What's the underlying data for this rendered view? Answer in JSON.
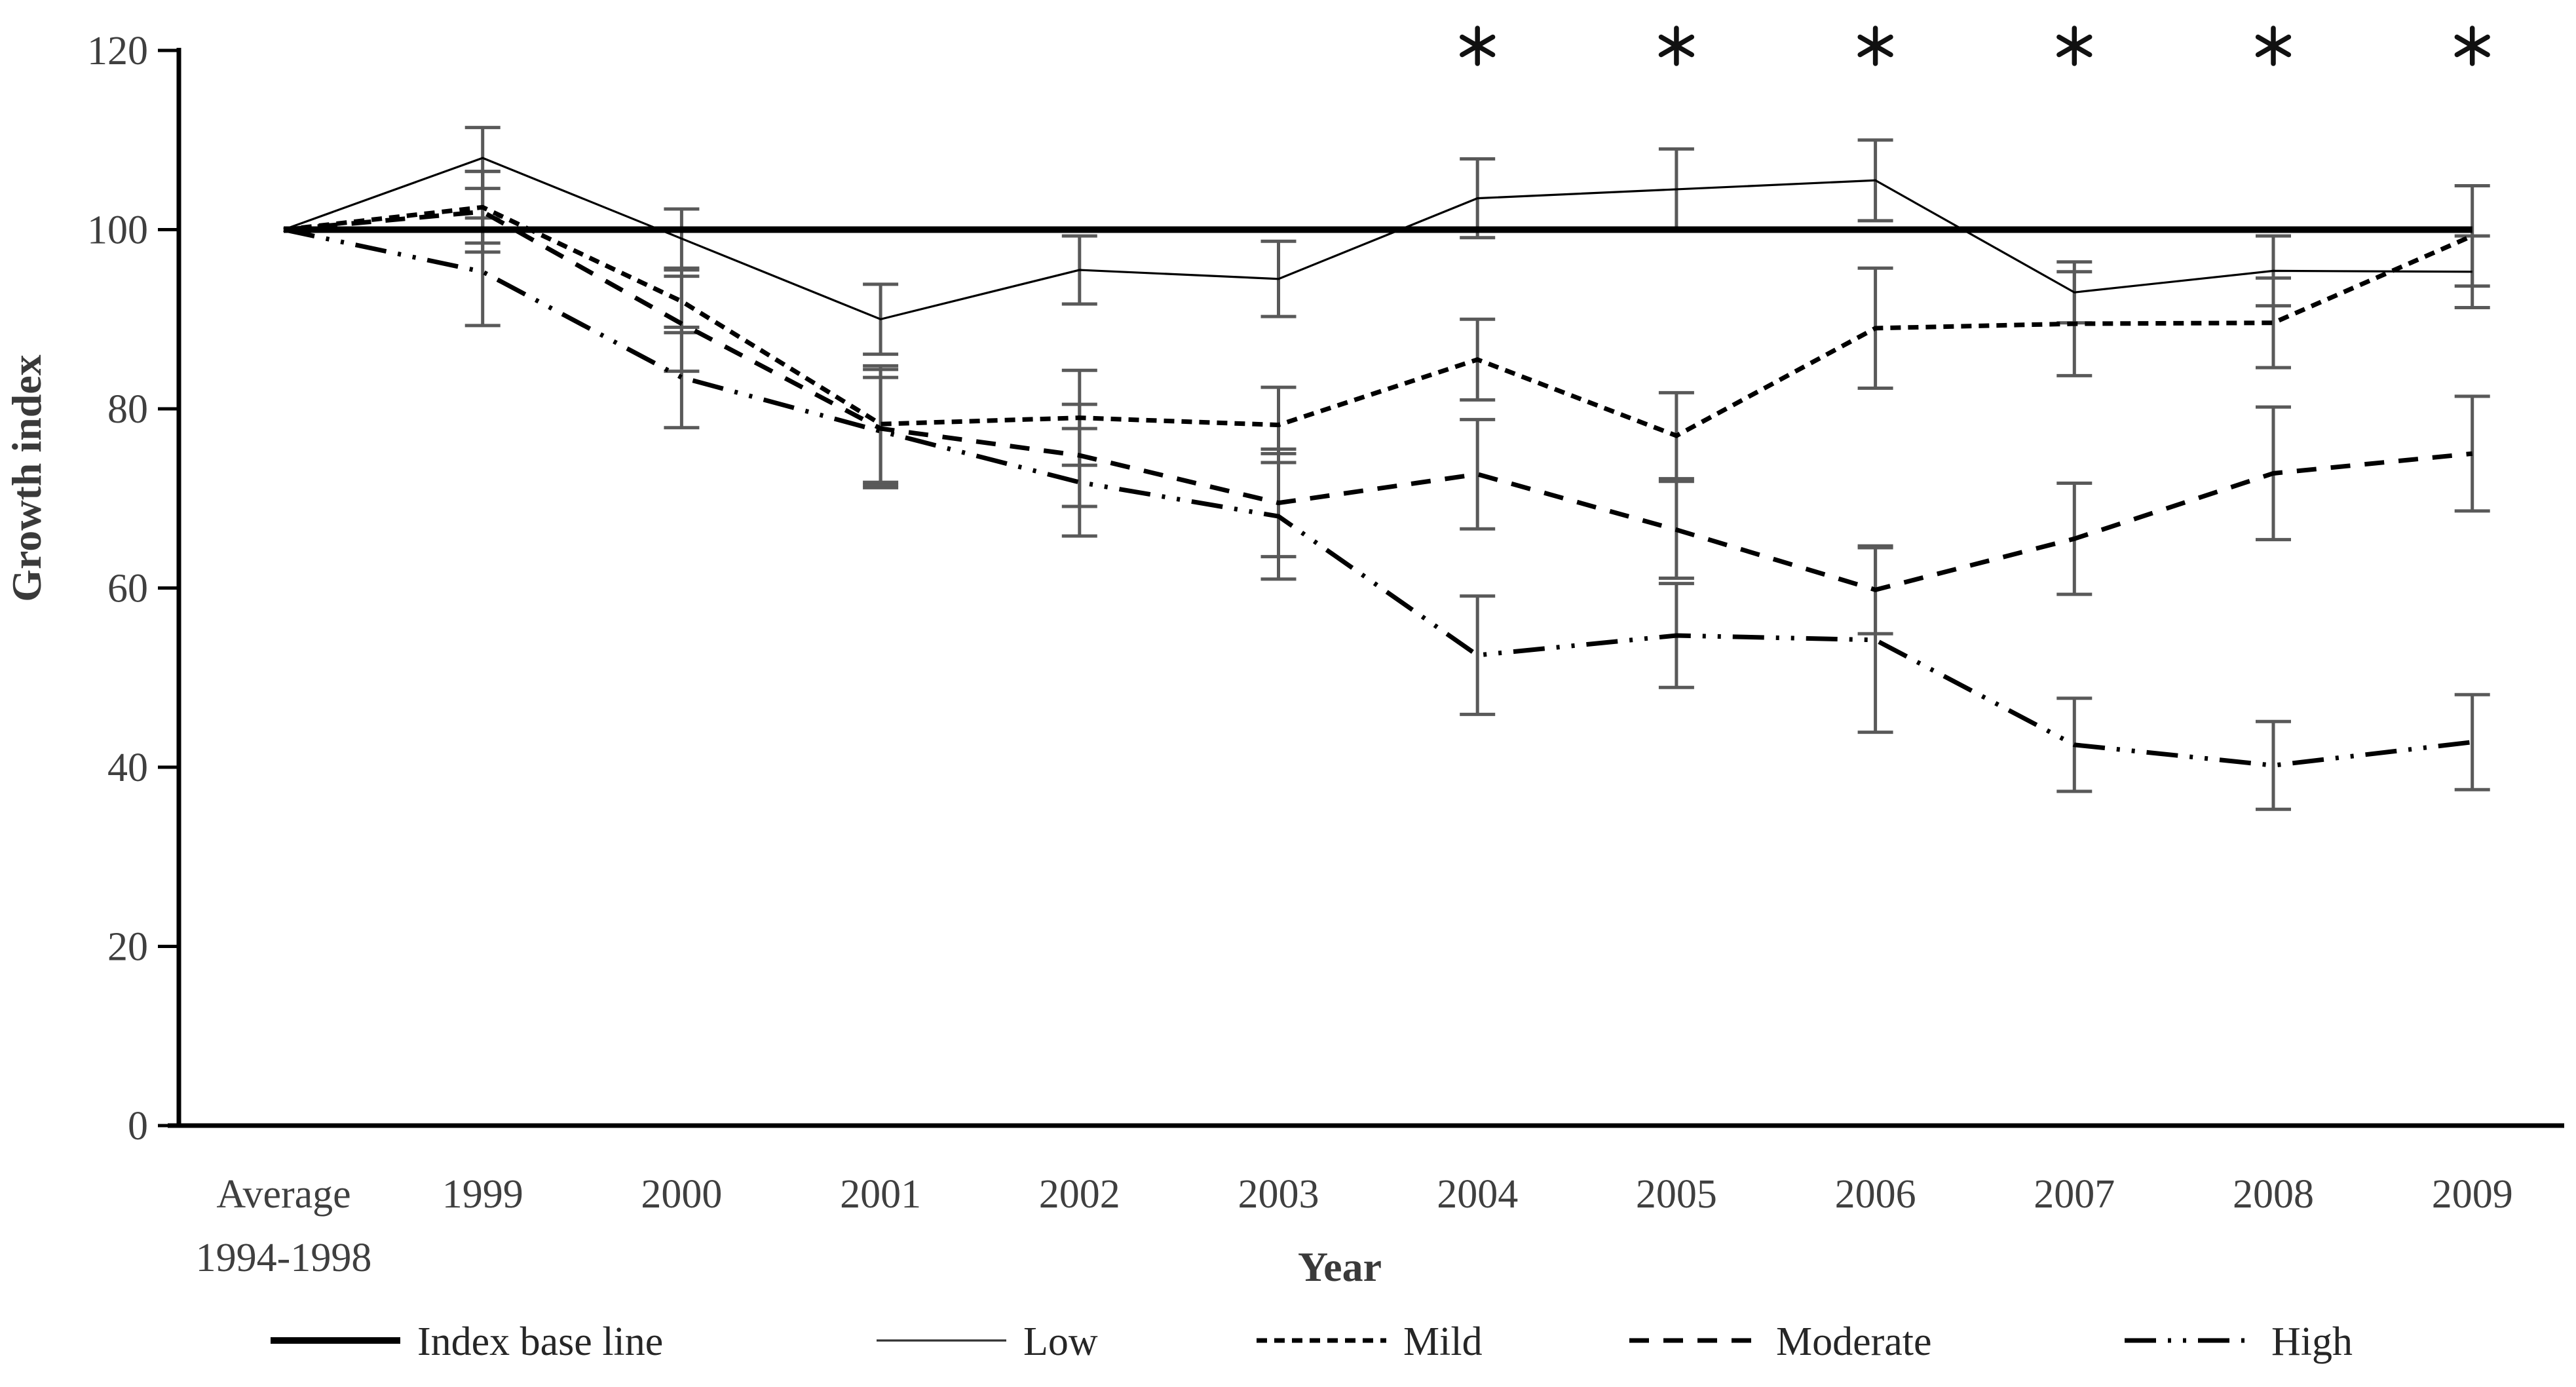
{
  "chart_data": {
    "type": "line",
    "title": "",
    "xlabel": "Year",
    "ylabel": "Growth index",
    "ylim": [
      0,
      120
    ],
    "yticks": [
      0,
      20,
      40,
      60,
      80,
      100,
      120
    ],
    "grid": false,
    "legend_position": "bottom",
    "categories": [
      [
        "Average",
        "1994-1998"
      ],
      [
        "1999"
      ],
      [
        "2000"
      ],
      [
        "2001"
      ],
      [
        "2002"
      ],
      [
        "2003"
      ],
      [
        "2004"
      ],
      [
        "2005"
      ],
      [
        "2006"
      ],
      [
        "2007"
      ],
      [
        "2008"
      ],
      [
        "2009"
      ]
    ],
    "series": [
      {
        "name": "Index base line",
        "style": "solid-thick",
        "values": [
          100,
          100,
          100,
          100,
          100,
          100,
          100,
          100,
          100,
          100,
          100,
          100
        ],
        "errors": null
      },
      {
        "name": "Low",
        "style": "solid-thin",
        "values": [
          100,
          108,
          99,
          90,
          95.5,
          94.5,
          103.5,
          104.5,
          105.5,
          93,
          95.4,
          95.3
        ],
        "errors": [
          0,
          3.4,
          3.3,
          3.9,
          3.8,
          4.2,
          4.4,
          4.5,
          4.5,
          3.4,
          3.9,
          4.0
        ]
      },
      {
        "name": "Mild",
        "style": "dash-fine",
        "values": [
          100,
          102.5,
          92,
          78.3,
          79,
          78.2,
          85.5,
          77,
          89,
          89.5,
          89.6,
          99.3
        ],
        "errors": [
          0,
          4.0,
          3.5,
          6.5,
          5.3,
          4.2,
          4.5,
          4.8,
          6.7,
          5.8,
          5.0,
          5.6
        ]
      },
      {
        "name": "Moderate",
        "style": "dash-medium",
        "values": [
          100,
          102,
          89.5,
          77.8,
          74.8,
          69.5,
          72.7,
          66.5,
          59.8,
          65.5,
          72.8,
          75
        ],
        "errors": [
          0,
          4.5,
          5.3,
          6.6,
          5.7,
          6.0,
          6.1,
          5.4,
          4.9,
          6.2,
          7.4,
          6.4
        ]
      },
      {
        "name": "High",
        "style": "dash-dot-dot",
        "values": [
          100,
          95.3,
          83.5,
          77.5,
          71.8,
          68,
          52.5,
          54.7,
          54.2,
          42.5,
          40.2,
          42.8
        ],
        "errors": [
          0,
          6.0,
          5.6,
          6.0,
          6.0,
          7.0,
          6.6,
          5.8,
          10.3,
          5.2,
          4.9,
          5.3
        ]
      }
    ],
    "annotations": {
      "significance_marker": "*",
      "marked_categories": [
        "2004",
        "2005",
        "2006",
        "2007",
        "2008",
        "2009"
      ]
    },
    "colors": {
      "line": "#000000",
      "error_bar": "#595959",
      "tick_label": "#3f3f3f"
    }
  }
}
